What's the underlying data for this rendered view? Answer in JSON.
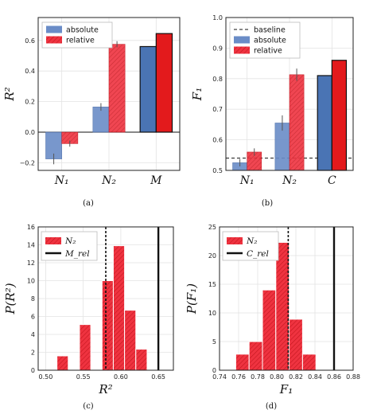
{
  "chart_data": [
    {
      "id": "a",
      "caption": "(a)",
      "type": "bar",
      "ylabel": "R²",
      "ylim": [
        -0.25,
        0.75
      ],
      "yticks": [
        -0.2,
        0.0,
        0.2,
        0.4,
        0.6
      ],
      "ytick_labels": [
        "−0.2",
        "0.0",
        "0.2",
        "0.4",
        "0.6"
      ],
      "grid": true,
      "legend": "top-left",
      "categories": [
        "N₁",
        "N₂",
        "M"
      ],
      "series": [
        {
          "name": "absolute",
          "color": "#6a8cc7",
          "hatch": false,
          "values": [
            -0.175,
            0.165,
            null
          ],
          "errors": [
            0.035,
            0.025,
            null
          ]
        },
        {
          "name": "relative",
          "color": "#ef3340",
          "hatch": true,
          "values": [
            -0.075,
            0.575,
            null
          ],
          "errors": [
            0.02,
            0.02,
            null
          ]
        }
      ],
      "solid_bars": [
        {
          "category": "M",
          "values": [
            0.56,
            0.645
          ],
          "colors": [
            "#4a74b4",
            "#e31a1c"
          ]
        }
      ]
    },
    {
      "id": "b",
      "caption": "(b)",
      "type": "bar",
      "ylabel": "F₁",
      "ylim": [
        0.5,
        1.0
      ],
      "yticks": [
        0.5,
        0.6,
        0.7,
        0.8,
        0.9,
        1.0
      ],
      "ytick_labels": [
        "0.5",
        "0.6",
        "0.7",
        "0.8",
        "0.9",
        "1.0"
      ],
      "grid": true,
      "legend": "top-left",
      "categories": [
        "N₁",
        "N₂",
        "C"
      ],
      "baseline": {
        "name": "baseline",
        "value": 0.54
      },
      "series": [
        {
          "name": "absolute",
          "color": "#6a8cc7",
          "hatch": false,
          "values": [
            0.525,
            0.655,
            null
          ],
          "errors": [
            0.012,
            0.025,
            null
          ]
        },
        {
          "name": "relative",
          "color": "#ef3340",
          "hatch": true,
          "values": [
            0.56,
            0.813,
            null
          ],
          "errors": [
            0.012,
            0.02,
            null
          ]
        }
      ],
      "solid_bars": [
        {
          "category": "C",
          "values": [
            0.81,
            0.86
          ],
          "colors": [
            "#4a74b4",
            "#e31a1c"
          ]
        }
      ]
    },
    {
      "id": "c",
      "caption": "(c)",
      "type": "histogram",
      "xlabel": "R²",
      "ylabel": "P(R²)",
      "xlim": [
        0.49,
        0.67
      ],
      "ylim": [
        0,
        16
      ],
      "xticks": [
        0.5,
        0.55,
        0.6,
        0.65
      ],
      "xtick_labels": [
        "0.50",
        "0.55",
        "0.60",
        "0.65"
      ],
      "yticks": [
        0,
        2,
        4,
        6,
        8,
        10,
        12,
        14,
        16
      ],
      "ytick_labels": [
        "0",
        "2",
        "4",
        "6",
        "8",
        "10",
        "12",
        "14",
        "16"
      ],
      "grid": true,
      "legend": "top-left",
      "series_name": "N₂",
      "bin_edges": [
        0.5,
        0.515,
        0.53,
        0.545,
        0.56,
        0.575,
        0.59,
        0.605,
        0.62,
        0.635,
        0.65
      ],
      "bin_values": [
        0,
        1.6,
        0,
        5.1,
        0,
        10.0,
        13.9,
        6.7,
        2.35,
        0
      ],
      "dashed_line": 0.58,
      "solid_line": {
        "name": "M_rel",
        "value": 0.65
      }
    },
    {
      "id": "d",
      "caption": "(d)",
      "type": "histogram",
      "xlabel": "F₁",
      "ylabel": "P(F₁)",
      "xlim": [
        0.74,
        0.88
      ],
      "ylim": [
        0,
        25
      ],
      "xticks": [
        0.74,
        0.76,
        0.78,
        0.8,
        0.82,
        0.84,
        0.86,
        0.88
      ],
      "xtick_labels": [
        "0.74",
        "0.76",
        "0.78",
        "0.80",
        "0.82",
        "0.84",
        "0.86",
        "0.88"
      ],
      "yticks": [
        0,
        5,
        10,
        15,
        20,
        25
      ],
      "ytick_labels": [
        "0",
        "5",
        "10",
        "15",
        "20",
        "25"
      ],
      "grid": true,
      "legend": "top-left",
      "series_name": "N₂",
      "bin_edges": [
        0.757,
        0.771,
        0.785,
        0.799,
        0.813,
        0.827,
        0.841,
        0.855
      ],
      "bin_values": [
        2.8,
        5.0,
        14.0,
        22.3,
        8.9,
        2.8,
        0
      ],
      "dashed_line": 0.812,
      "solid_line": {
        "name": "C_rel",
        "value": 0.86
      }
    }
  ]
}
